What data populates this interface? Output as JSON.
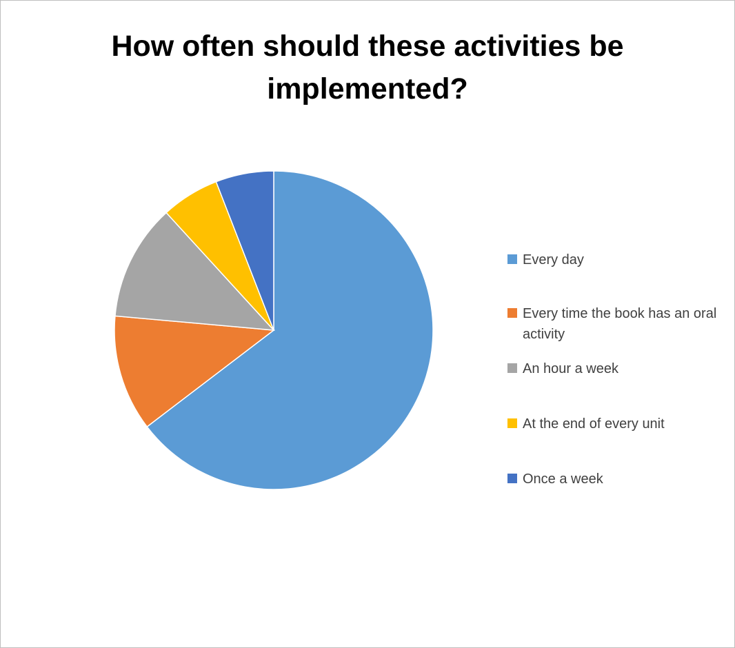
{
  "chart_data": {
    "type": "pie",
    "title": "How often should these activities be implemented?",
    "categories": [
      "Every day",
      "Every time the book has an oral activity",
      "An hour a week",
      "At the end of every unit",
      "Once a week"
    ],
    "values": [
      64.7,
      11.8,
      11.8,
      5.9,
      5.9
    ],
    "colors": [
      "#5B9BD5",
      "#ED7D31",
      "#A5A5A5",
      "#FFC000",
      "#4472C4"
    ],
    "start_angle_deg": 0,
    "direction": "clockwise",
    "legend_position": "right"
  }
}
